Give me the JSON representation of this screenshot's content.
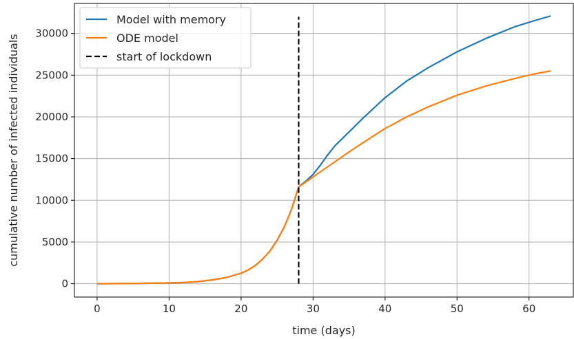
{
  "chart_data": {
    "type": "line",
    "xlabel": "time (days)",
    "ylabel": "cumulative number of infected individuals",
    "xlim": [
      -3.15,
      66.15
    ],
    "ylim": [
      -1600,
      33600
    ],
    "xticks": [
      0,
      10,
      20,
      30,
      40,
      50,
      60
    ],
    "yticks": [
      0,
      5000,
      10000,
      15000,
      20000,
      25000,
      30000
    ],
    "grid": true,
    "legend_position": "top-left",
    "series": [
      {
        "name": "Model with memory",
        "color": "#1f77b4",
        "style": "solid",
        "x": [
          0,
          5,
          10,
          12,
          14,
          16,
          18,
          20,
          21,
          22,
          23,
          24,
          25,
          26,
          27,
          28,
          29,
          30,
          31,
          32,
          33,
          35,
          37,
          40,
          43,
          46,
          50,
          54,
          58,
          61,
          63
        ],
        "y": [
          0,
          30,
          90,
          140,
          250,
          450,
          750,
          1250,
          1650,
          2200,
          2950,
          3900,
          5200,
          6800,
          8900,
          11600,
          12300,
          13100,
          14200,
          15400,
          16500,
          18200,
          19900,
          22300,
          24300,
          25900,
          27800,
          29400,
          30800,
          31600,
          32100
        ]
      },
      {
        "name": "ODE model",
        "color": "#ff7f0e",
        "style": "solid",
        "x": [
          0,
          5,
          10,
          12,
          14,
          16,
          18,
          20,
          21,
          22,
          23,
          24,
          25,
          26,
          27,
          28,
          29,
          30,
          32,
          35,
          38,
          40,
          43,
          46,
          50,
          54,
          58,
          61,
          63
        ],
        "y": [
          0,
          30,
          90,
          140,
          250,
          450,
          750,
          1250,
          1650,
          2200,
          2950,
          3900,
          5200,
          6800,
          8900,
          11600,
          12200,
          12800,
          14000,
          15800,
          17500,
          18600,
          20000,
          21200,
          22600,
          23700,
          24600,
          25200,
          25500
        ]
      },
      {
        "name": "start of lockdown",
        "color": "#000000",
        "style": "dashed",
        "x": [
          28,
          28
        ],
        "y": [
          0,
          32000
        ]
      }
    ]
  }
}
